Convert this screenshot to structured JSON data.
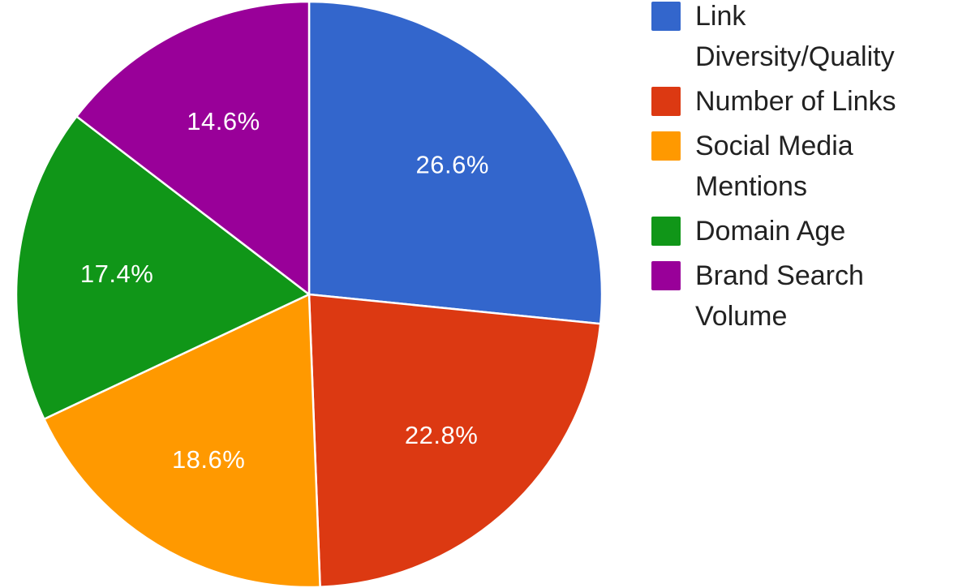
{
  "chart_data": {
    "type": "pie",
    "title": "",
    "slices": [
      {
        "name": "Link Diversity/Quality",
        "value": 26.6,
        "label": "26.6%",
        "color": "#3366cc"
      },
      {
        "name": "Number of Links",
        "value": 22.8,
        "label": "22.8%",
        "color": "#dc3912"
      },
      {
        "name": "Social Media Mentions",
        "value": 18.6,
        "label": "18.6%",
        "color": "#ff9900"
      },
      {
        "name": "Domain Age",
        "value": 17.4,
        "label": "17.4%",
        "color": "#109618"
      },
      {
        "name": "Brand Search Volume",
        "value": 14.6,
        "label": "14.6%",
        "color": "#990099"
      }
    ],
    "legend_position": "right",
    "start_angle": "12 o'clock",
    "direction": "clockwise"
  }
}
